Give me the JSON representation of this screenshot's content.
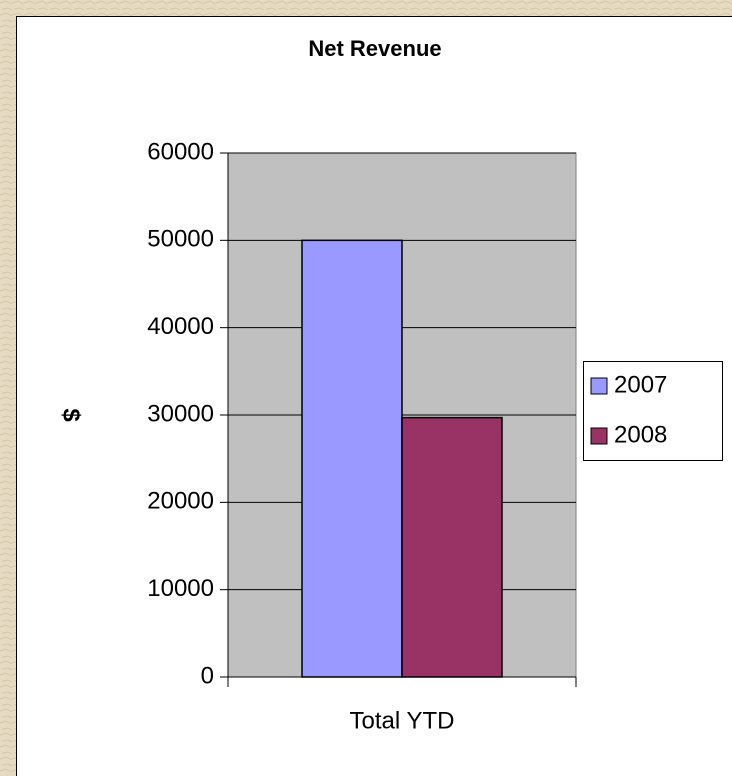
{
  "chart_data": {
    "type": "bar",
    "title": "Net Revenue",
    "y_label": "$",
    "categories": [
      "Total YTD"
    ],
    "series": [
      {
        "name": "2007",
        "color": "#9999ff",
        "values": [
          50000
        ]
      },
      {
        "name": "2008",
        "color": "#993366",
        "values": [
          29700
        ]
      }
    ],
    "ylim": [
      0,
      60000
    ],
    "yticks": [
      0,
      10000,
      20000,
      30000,
      40000,
      50000,
      60000
    ],
    "grid": true,
    "legend": "right"
  }
}
